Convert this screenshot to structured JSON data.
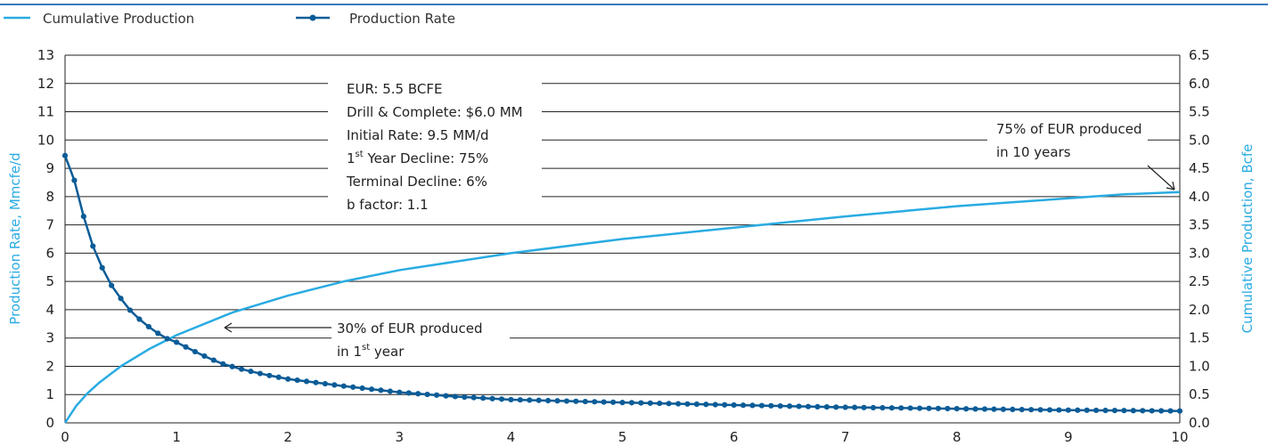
{
  "colors": {
    "cumulative": "#29abe2",
    "rate": "#0b5c97",
    "grid": "#222222",
    "topline": "#3a7cbf"
  },
  "legend": {
    "cumulative_label": "Cumulative Production",
    "rate_label": "Production Rate"
  },
  "axes": {
    "y_left_label": "Production Rate, Mmcfe/d",
    "y_right_label": "Cumulative Production, Bcfe",
    "x_ticks": [
      "0",
      "1",
      "2",
      "3",
      "4",
      "5",
      "6",
      "7",
      "8",
      "9",
      "10"
    ],
    "y_left_ticks": [
      "0",
      "1",
      "2",
      "3",
      "4",
      "5",
      "6",
      "7",
      "8",
      "9",
      "10",
      "11",
      "12",
      "13"
    ],
    "y_right_ticks": [
      "0.0",
      "0.5",
      "1.0",
      "1.5",
      "2.0",
      "2.5",
      "3.0",
      "3.5",
      "4.0",
      "4.5",
      "5.0",
      "5.5",
      "6.0",
      "6.5"
    ]
  },
  "info_box": {
    "line1": "EUR: 5.5 BCFE",
    "line2": "Drill & Complete: $6.0 MM",
    "line3": "Initial Rate: 9.5 MM/d",
    "line4_main": "1",
    "line4_sup": "st",
    "line4_rest": " Year Decline: 75%",
    "line5": "Terminal Decline: 6%",
    "line6": "b factor: 1.1"
  },
  "annotations": {
    "first_year_line1": "30% of EUR produced",
    "first_year_line2_main": "in 1",
    "first_year_line2_sup": "st",
    "first_year_line2_rest": " year",
    "ten_year_line1": "75% of EUR produced",
    "ten_year_line2": "in 10 years"
  },
  "chart_data": {
    "type": "line",
    "x_unit": "years",
    "xlim": [
      0,
      10
    ],
    "ylim_left": [
      0,
      13
    ],
    "ylim_right": [
      0,
      6.5
    ],
    "grid": "horizontal",
    "legend_position": "top-left",
    "series": [
      {
        "name": "Production Rate",
        "axis": "left",
        "marker": "circle",
        "x": [
          0,
          0.1,
          0.2,
          0.3,
          0.4,
          0.5,
          0.6,
          0.7,
          0.8,
          0.9,
          1.0,
          1.2,
          1.4,
          1.6,
          1.8,
          2.0,
          2.5,
          3.0,
          3.5,
          4.0,
          5.0,
          6.0,
          7.0,
          8.0,
          9.0,
          10.0
        ],
        "values": [
          9.45,
          8.4,
          6.75,
          5.75,
          4.95,
          4.4,
          3.9,
          3.55,
          3.25,
          3.0,
          2.85,
          2.45,
          2.1,
          1.88,
          1.7,
          1.55,
          1.3,
          1.08,
          0.93,
          0.82,
          0.72,
          0.63,
          0.55,
          0.5,
          0.45,
          0.42
        ]
      },
      {
        "name": "Cumulative Production",
        "axis": "right",
        "marker": "none",
        "x": [
          0,
          0.05,
          0.1,
          0.2,
          0.3,
          0.5,
          0.75,
          1.0,
          1.5,
          2.0,
          2.5,
          3.0,
          4.0,
          5.0,
          6.0,
          7.0,
          8.0,
          9.0,
          9.5,
          10.0
        ],
        "values": [
          0.0,
          0.15,
          0.3,
          0.52,
          0.7,
          1.0,
          1.3,
          1.55,
          1.95,
          2.25,
          2.5,
          2.7,
          3.0,
          3.25,
          3.45,
          3.65,
          3.83,
          3.97,
          4.04,
          4.08
        ]
      }
    ]
  }
}
